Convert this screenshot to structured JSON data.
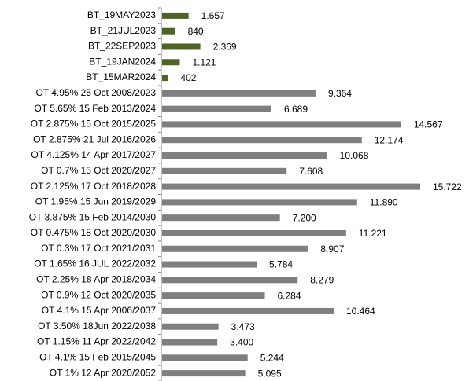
{
  "chart_data": {
    "type": "bar",
    "orientation": "horizontal",
    "categories": [
      "BT_19MAY2023",
      "BT_21JUL2023",
      "BT_22SEP2023",
      "BT_19JAN2024",
      "BT_15MAR2024",
      "OT 4.95% 25 Oct 2008/2023",
      "OT 5.65% 15 Feb 2013/2024",
      "OT 2.875% 15 Oct 2015/2025",
      "OT 2.875% 21 Jul 2016/2026",
      "OT 4.125% 14 Apr 2017/2027",
      "OT 0.7% 15 Oct 2020/2027",
      "OT 2.125% 17 Oct 2018/2028",
      "OT 1.95% 15 Jun 2019/2029",
      "OT 3.875% 15 Feb 2014/2030",
      "OT 0.475% 18 Oct 2020/2030",
      "OT 0.3% 17 Oct 2021/2031",
      "OT 1.65% 16 JUL 2022/2032",
      "OT 2.25% 18 Apr 2018/2034",
      "OT 0.9% 12 Oct 2020/2035",
      "OT 4.1% 15 Apr 2006/2037",
      "OT 3.50% 18Jun 2022/2038",
      "OT 1.15% 11 Apr 2022/2042",
      "OT 4.1% 15 Feb 2015/2045",
      "OT 1% 12 Apr 2020/2052"
    ],
    "values": [
      1657,
      840,
      2369,
      1121,
      402,
      9364,
      6689,
      14567,
      12174,
      10068,
      7608,
      15722,
      11890,
      7200,
      11221,
      8907,
      5784,
      8279,
      6284,
      10464,
      3473,
      3400,
      5244,
      5095
    ],
    "value_labels": [
      "1.657",
      "840",
      "2.369",
      "1.121",
      "402",
      "9.364",
      "6.689",
      "14.567",
      "12.174",
      "10.068",
      "7.608",
      "15.722",
      "11.890",
      "7.200",
      "11.221",
      "8.907",
      "5.784",
      "8.279",
      "6.284",
      "10.464",
      "3.473",
      "3.400",
      "5.244",
      "5.095"
    ],
    "colors": [
      "#4f6228",
      "#4f6228",
      "#4f6228",
      "#4f6228",
      "#4f6228",
      "#7f7f7f",
      "#7f7f7f",
      "#7f7f7f",
      "#7f7f7f",
      "#7f7f7f",
      "#7f7f7f",
      "#7f7f7f",
      "#7f7f7f",
      "#7f7f7f",
      "#7f7f7f",
      "#7f7f7f",
      "#7f7f7f",
      "#7f7f7f",
      "#7f7f7f",
      "#7f7f7f",
      "#7f7f7f",
      "#7f7f7f",
      "#7f7f7f",
      "#7f7f7f"
    ]
  }
}
